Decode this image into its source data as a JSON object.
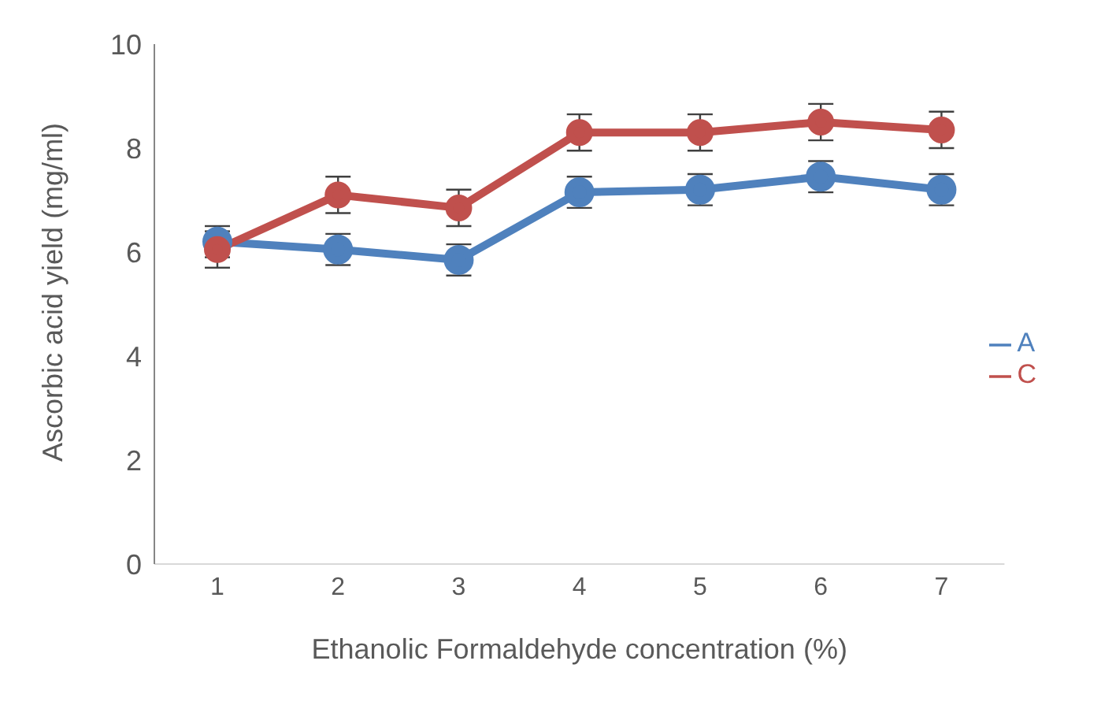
{
  "chart_data": {
    "type": "line",
    "xlabel": "Ethanolic Formaldehyde concentration (%)",
    "ylabel": "Ascorbic acid yield (mg/ml)",
    "categories": [
      "1",
      "2",
      "3",
      "4",
      "5",
      "6",
      "7"
    ],
    "series": [
      {
        "name": "A",
        "color": "#4f81bd",
        "values": [
          6.2,
          6.05,
          5.85,
          7.15,
          7.2,
          7.45,
          7.2
        ],
        "errors": [
          0.3,
          0.3,
          0.3,
          0.3,
          0.3,
          0.3,
          0.3
        ]
      },
      {
        "name": "C",
        "color": "#c0504d",
        "values": [
          6.05,
          7.1,
          6.85,
          8.3,
          8.3,
          8.5,
          8.35
        ],
        "errors": [
          0.35,
          0.35,
          0.35,
          0.35,
          0.35,
          0.35,
          0.35
        ]
      }
    ],
    "ylim": [
      0,
      10
    ],
    "yticks": [
      0,
      2,
      4,
      6,
      8,
      10
    ],
    "grid": false,
    "legend": "right",
    "marker": "circle",
    "line_style": "solid"
  }
}
